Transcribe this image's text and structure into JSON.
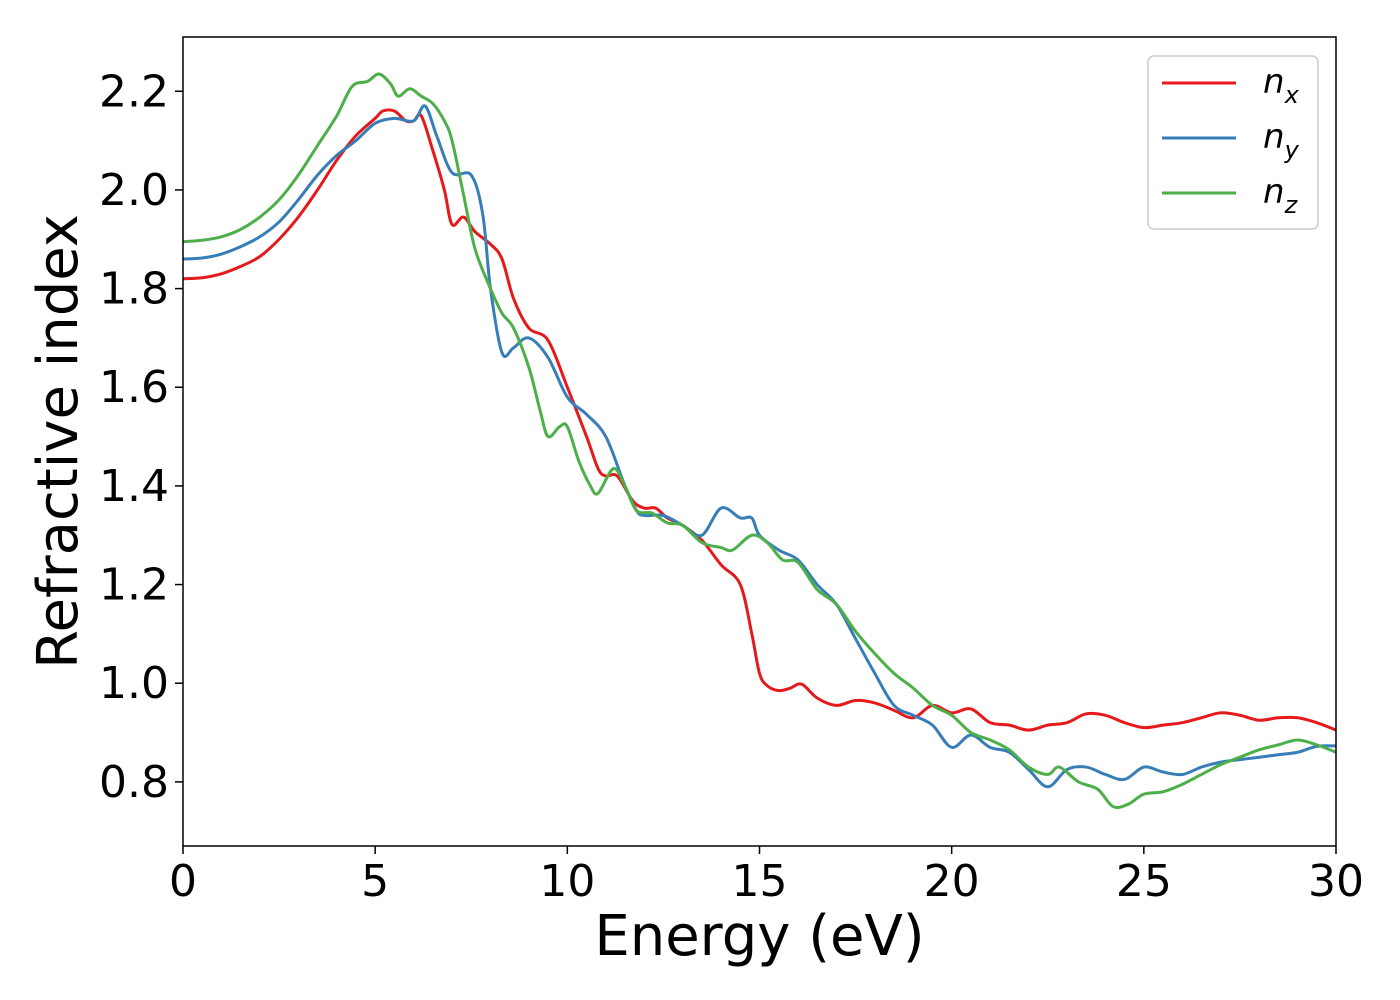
{
  "chart_data": {
    "type": "line",
    "title": "",
    "xlabel": "Energy (eV)",
    "ylabel": "Refractive index",
    "xlim": [
      0,
      30
    ],
    "ylim": [
      0.67,
      2.31
    ],
    "xticks": [
      0,
      5,
      10,
      15,
      20,
      25,
      30
    ],
    "xtick_labels": [
      "0",
      "5",
      "10",
      "15",
      "20",
      "25",
      "30"
    ],
    "yticks": [
      0.8,
      1.0,
      1.2,
      1.4,
      1.6,
      1.8,
      2.0,
      2.2
    ],
    "ytick_labels": [
      "0.8",
      "1.0",
      "1.2",
      "1.4",
      "1.6",
      "1.8",
      "2.0",
      "2.2"
    ],
    "grid": false,
    "legend_position": "top-right",
    "series": [
      {
        "name": "n_x",
        "label_base": "n",
        "label_sub": "x",
        "color": "#e41a1c",
        "points": [
          [
            0,
            1.82
          ],
          [
            0.5,
            1.822
          ],
          [
            1,
            1.83
          ],
          [
            1.5,
            1.845
          ],
          [
            2,
            1.865
          ],
          [
            2.5,
            1.9
          ],
          [
            3,
            1.945
          ],
          [
            3.5,
            2.0
          ],
          [
            4,
            2.06
          ],
          [
            4.5,
            2.11
          ],
          [
            5,
            2.145
          ],
          [
            5.2,
            2.16
          ],
          [
            5.5,
            2.16
          ],
          [
            5.8,
            2.14
          ],
          [
            6.0,
            2.14
          ],
          [
            6.2,
            2.15
          ],
          [
            6.5,
            2.08
          ],
          [
            6.8,
            2.0
          ],
          [
            7.0,
            1.93
          ],
          [
            7.3,
            1.945
          ],
          [
            7.6,
            1.915
          ],
          [
            8.0,
            1.89
          ],
          [
            8.3,
            1.86
          ],
          [
            8.6,
            1.78
          ],
          [
            9.0,
            1.72
          ],
          [
            9.5,
            1.695
          ],
          [
            10.0,
            1.6
          ],
          [
            10.5,
            1.5
          ],
          [
            10.8,
            1.435
          ],
          [
            11.0,
            1.42
          ],
          [
            11.3,
            1.42
          ],
          [
            11.7,
            1.37
          ],
          [
            12.0,
            1.355
          ],
          [
            12.3,
            1.355
          ],
          [
            12.6,
            1.335
          ],
          [
            13.0,
            1.32
          ],
          [
            13.5,
            1.29
          ],
          [
            14.0,
            1.24
          ],
          [
            14.5,
            1.2
          ],
          [
            14.8,
            1.1
          ],
          [
            15.0,
            1.02
          ],
          [
            15.2,
            0.995
          ],
          [
            15.5,
            0.985
          ],
          [
            15.8,
            0.99
          ],
          [
            16.1,
            0.998
          ],
          [
            16.5,
            0.97
          ],
          [
            17.0,
            0.955
          ],
          [
            17.5,
            0.965
          ],
          [
            18.0,
            0.96
          ],
          [
            18.5,
            0.945
          ],
          [
            19.0,
            0.93
          ],
          [
            19.5,
            0.955
          ],
          [
            20.0,
            0.94
          ],
          [
            20.5,
            0.948
          ],
          [
            21.0,
            0.92
          ],
          [
            21.5,
            0.915
          ],
          [
            22.0,
            0.905
          ],
          [
            22.5,
            0.915
          ],
          [
            23.0,
            0.92
          ],
          [
            23.5,
            0.938
          ],
          [
            24.0,
            0.935
          ],
          [
            24.5,
            0.92
          ],
          [
            25.0,
            0.91
          ],
          [
            25.5,
            0.915
          ],
          [
            26.0,
            0.92
          ],
          [
            26.5,
            0.93
          ],
          [
            27.0,
            0.94
          ],
          [
            27.5,
            0.935
          ],
          [
            28.0,
            0.925
          ],
          [
            28.5,
            0.93
          ],
          [
            29.0,
            0.93
          ],
          [
            29.5,
            0.92
          ],
          [
            30.0,
            0.905
          ]
        ]
      },
      {
        "name": "n_y",
        "label_base": "n",
        "label_sub": "y",
        "color": "#377eb8",
        "points": [
          [
            0,
            1.86
          ],
          [
            0.5,
            1.862
          ],
          [
            1,
            1.87
          ],
          [
            1.5,
            1.885
          ],
          [
            2,
            1.905
          ],
          [
            2.5,
            1.935
          ],
          [
            3,
            1.98
          ],
          [
            3.5,
            2.03
          ],
          [
            4,
            2.07
          ],
          [
            4.5,
            2.1
          ],
          [
            5.0,
            2.135
          ],
          [
            5.5,
            2.145
          ],
          [
            6.0,
            2.14
          ],
          [
            6.3,
            2.17
          ],
          [
            6.6,
            2.11
          ],
          [
            7.0,
            2.035
          ],
          [
            7.5,
            2.03
          ],
          [
            7.8,
            1.95
          ],
          [
            8.0,
            1.8
          ],
          [
            8.3,
            1.67
          ],
          [
            8.6,
            1.68
          ],
          [
            9.0,
            1.7
          ],
          [
            9.5,
            1.66
          ],
          [
            10.0,
            1.58
          ],
          [
            10.5,
            1.545
          ],
          [
            11.0,
            1.5
          ],
          [
            11.5,
            1.4
          ],
          [
            11.8,
            1.35
          ],
          [
            12.0,
            1.34
          ],
          [
            12.5,
            1.34
          ],
          [
            13.0,
            1.32
          ],
          [
            13.5,
            1.3
          ],
          [
            14.0,
            1.355
          ],
          [
            14.5,
            1.335
          ],
          [
            14.8,
            1.335
          ],
          [
            15.0,
            1.3
          ],
          [
            15.5,
            1.27
          ],
          [
            16.0,
            1.25
          ],
          [
            16.5,
            1.2
          ],
          [
            17.0,
            1.16
          ],
          [
            17.5,
            1.09
          ],
          [
            18.0,
            1.02
          ],
          [
            18.5,
            0.955
          ],
          [
            19.0,
            0.935
          ],
          [
            19.5,
            0.915
          ],
          [
            20.0,
            0.87
          ],
          [
            20.5,
            0.895
          ],
          [
            21.0,
            0.87
          ],
          [
            21.5,
            0.86
          ],
          [
            22.0,
            0.825
          ],
          [
            22.5,
            0.79
          ],
          [
            23.0,
            0.825
          ],
          [
            23.5,
            0.83
          ],
          [
            24.0,
            0.815
          ],
          [
            24.5,
            0.805
          ],
          [
            25.0,
            0.83
          ],
          [
            25.5,
            0.82
          ],
          [
            26.0,
            0.815
          ],
          [
            26.5,
            0.83
          ],
          [
            27.0,
            0.84
          ],
          [
            27.5,
            0.845
          ],
          [
            28.0,
            0.85
          ],
          [
            28.5,
            0.855
          ],
          [
            29.0,
            0.86
          ],
          [
            29.5,
            0.872
          ],
          [
            30.0,
            0.873
          ]
        ]
      },
      {
        "name": "n_z",
        "label_base": "n",
        "label_sub": "z",
        "color": "#4daf4a",
        "points": [
          [
            0,
            1.895
          ],
          [
            0.5,
            1.898
          ],
          [
            1,
            1.905
          ],
          [
            1.5,
            1.92
          ],
          [
            2,
            1.945
          ],
          [
            2.5,
            1.98
          ],
          [
            3,
            2.03
          ],
          [
            3.5,
            2.09
          ],
          [
            4,
            2.15
          ],
          [
            4.4,
            2.21
          ],
          [
            4.8,
            2.22
          ],
          [
            5.1,
            2.235
          ],
          [
            5.4,
            2.215
          ],
          [
            5.6,
            2.19
          ],
          [
            5.9,
            2.205
          ],
          [
            6.2,
            2.19
          ],
          [
            6.5,
            2.175
          ],
          [
            6.8,
            2.14
          ],
          [
            7.0,
            2.1
          ],
          [
            7.3,
            1.99
          ],
          [
            7.6,
            1.88
          ],
          [
            8.0,
            1.8
          ],
          [
            8.3,
            1.75
          ],
          [
            8.6,
            1.72
          ],
          [
            9.0,
            1.64
          ],
          [
            9.3,
            1.55
          ],
          [
            9.5,
            1.5
          ],
          [
            9.8,
            1.52
          ],
          [
            10.0,
            1.52
          ],
          [
            10.3,
            1.45
          ],
          [
            10.6,
            1.4
          ],
          [
            10.8,
            1.385
          ],
          [
            11.2,
            1.435
          ],
          [
            11.5,
            1.4
          ],
          [
            11.8,
            1.35
          ],
          [
            12.2,
            1.345
          ],
          [
            12.6,
            1.325
          ],
          [
            13.0,
            1.32
          ],
          [
            13.5,
            1.285
          ],
          [
            14.0,
            1.275
          ],
          [
            14.3,
            1.27
          ],
          [
            14.8,
            1.3
          ],
          [
            15.2,
            1.285
          ],
          [
            15.6,
            1.25
          ],
          [
            16.0,
            1.245
          ],
          [
            16.5,
            1.19
          ],
          [
            17.0,
            1.16
          ],
          [
            17.5,
            1.105
          ],
          [
            18.0,
            1.06
          ],
          [
            18.5,
            1.02
          ],
          [
            19.0,
            0.99
          ],
          [
            19.5,
            0.955
          ],
          [
            20.0,
            0.935
          ],
          [
            20.5,
            0.9
          ],
          [
            21.0,
            0.885
          ],
          [
            21.5,
            0.865
          ],
          [
            22.0,
            0.83
          ],
          [
            22.5,
            0.815
          ],
          [
            22.8,
            0.83
          ],
          [
            23.3,
            0.8
          ],
          [
            23.8,
            0.785
          ],
          [
            24.2,
            0.75
          ],
          [
            24.6,
            0.755
          ],
          [
            25.0,
            0.775
          ],
          [
            25.5,
            0.78
          ],
          [
            26.0,
            0.795
          ],
          [
            26.5,
            0.815
          ],
          [
            27.0,
            0.835
          ],
          [
            27.5,
            0.85
          ],
          [
            28.0,
            0.865
          ],
          [
            28.5,
            0.875
          ],
          [
            29.0,
            0.885
          ],
          [
            29.5,
            0.875
          ],
          [
            30.0,
            0.86
          ]
        ]
      }
    ]
  }
}
